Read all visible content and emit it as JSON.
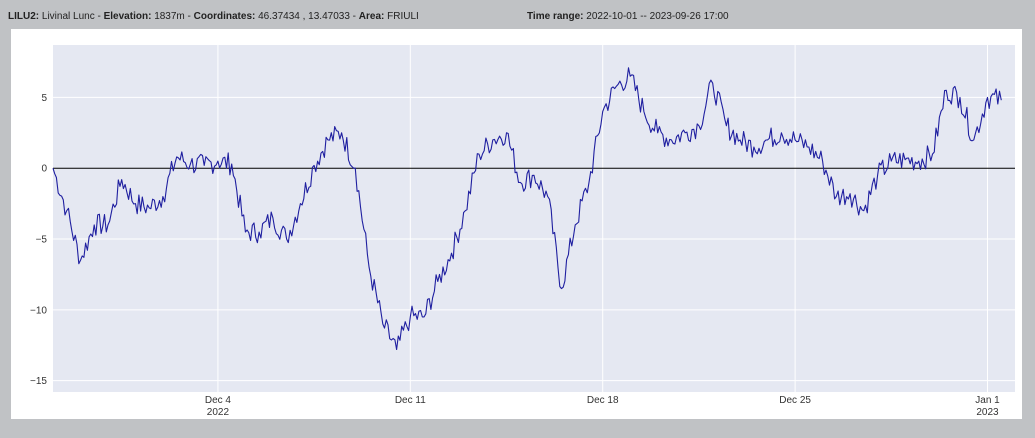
{
  "header": {
    "station_code": "LILU2:",
    "station_name": "Livinal Lunc",
    "elevation_label": "Elevation:",
    "elevation_value": "1837m",
    "coordinates_label": "Coordinates:",
    "coordinates_value": "46.37434 , 13.47033",
    "area_label": "Area:",
    "area_value": "FRIULI",
    "time_range_label": "Time range:",
    "time_range_value": "2022-10-01 -- 2023-09-26 17:00",
    "separator": "-"
  },
  "colors": {
    "plot_background": "#e5e8f2",
    "line": "#1f1fa0",
    "zero_line": "#000000",
    "grid": "#ffffff"
  },
  "chart_data": {
    "type": "line",
    "title": "",
    "xlabel": "",
    "ylabel": "",
    "ylim": [
      -15.8,
      8.7
    ],
    "xlim": [
      "2022-11-28",
      "2023-01-02"
    ],
    "y_ticks": [
      5,
      0,
      -5,
      -10,
      -15
    ],
    "x_ticks": [
      {
        "date": "2022-12-04",
        "label": "Dec 4",
        "sublabel": "2022"
      },
      {
        "date": "2022-12-11",
        "label": "Dec 11",
        "sublabel": ""
      },
      {
        "date": "2022-12-18",
        "label": "Dec 18",
        "sublabel": ""
      },
      {
        "date": "2022-12-25",
        "label": "Dec 25",
        "sublabel": ""
      },
      {
        "date": "2023-01-01",
        "label": "Jan 1",
        "sublabel": "2023"
      }
    ],
    "reference_line": 0,
    "grid": true,
    "series": [
      {
        "x": [
          "2022-11-28 00:00",
          "2022-11-28 12:00",
          "2022-11-29 00:00",
          "2022-11-29 12:00",
          "2022-11-30 00:00",
          "2022-11-30 12:00",
          "2022-12-01 00:00",
          "2022-12-01 12:00",
          "2022-12-02 00:00",
          "2022-12-02 12:00",
          "2022-12-03 00:00",
          "2022-12-03 12:00",
          "2022-12-04 00:00",
          "2022-12-04 12:00",
          "2022-12-05 00:00",
          "2022-12-05 12:00",
          "2022-12-06 00:00",
          "2022-12-06 12:00",
          "2022-12-07 00:00",
          "2022-12-07 12:00",
          "2022-12-08 00:00",
          "2022-12-08 12:00",
          "2022-12-09 00:00",
          "2022-12-09 12:00",
          "2022-12-10 00:00",
          "2022-12-10 12:00",
          "2022-12-11 00:00",
          "2022-12-11 12:00",
          "2022-12-12 00:00",
          "2022-12-12 12:00",
          "2022-12-13 00:00",
          "2022-12-13 12:00",
          "2022-12-14 00:00",
          "2022-12-14 12:00",
          "2022-12-15 00:00",
          "2022-12-15 12:00",
          "2022-12-16 00:00",
          "2022-12-16 12:00",
          "2022-12-17 00:00",
          "2022-12-17 12:00",
          "2022-12-18 00:00",
          "2022-12-18 12:00",
          "2022-12-19 00:00",
          "2022-12-19 12:00",
          "2022-12-20 00:00",
          "2022-12-20 12:00",
          "2022-12-21 00:00",
          "2022-12-21 12:00",
          "2022-12-22 00:00",
          "2022-12-22 12:00",
          "2022-12-23 00:00",
          "2022-12-23 12:00",
          "2022-12-24 00:00",
          "2022-12-24 12:00",
          "2022-12-25 00:00",
          "2022-12-25 12:00",
          "2022-12-26 00:00",
          "2022-12-26 12:00",
          "2022-12-27 00:00",
          "2022-12-27 12:00",
          "2022-12-28 00:00",
          "2022-12-28 12:00",
          "2022-12-29 00:00",
          "2022-12-29 12:00",
          "2022-12-30 00:00",
          "2022-12-30 12:00",
          "2022-12-31 00:00",
          "2022-12-31 12:00",
          "2023-01-01 00:00",
          "2023-01-01 12:00"
        ],
        "y": [
          0,
          -3,
          -6.5,
          -4,
          -4,
          -0.8,
          -2.5,
          -2.8,
          -2,
          0.8,
          0.3,
          0.2,
          0.5,
          0.3,
          -4.5,
          -4.5,
          -3.5,
          -5,
          -2.5,
          0.2,
          2.0,
          2.5,
          0,
          -7,
          -11,
          -12.8,
          -10.5,
          -10.5,
          -8,
          -6,
          -3,
          1,
          2,
          2.5,
          -1,
          -0.5,
          -2,
          -8.5,
          -4,
          -1,
          4,
          5.8,
          6.5,
          4,
          2.5,
          2,
          2.5,
          3,
          6.0,
          3,
          2,
          1.5,
          2,
          2.5,
          2,
          1.5,
          0.5,
          -2,
          -1.8,
          -3,
          -0.5,
          0.5,
          0.6,
          0.5,
          1,
          5.5,
          5,
          2,
          5,
          4.8
        ]
      }
    ]
  }
}
